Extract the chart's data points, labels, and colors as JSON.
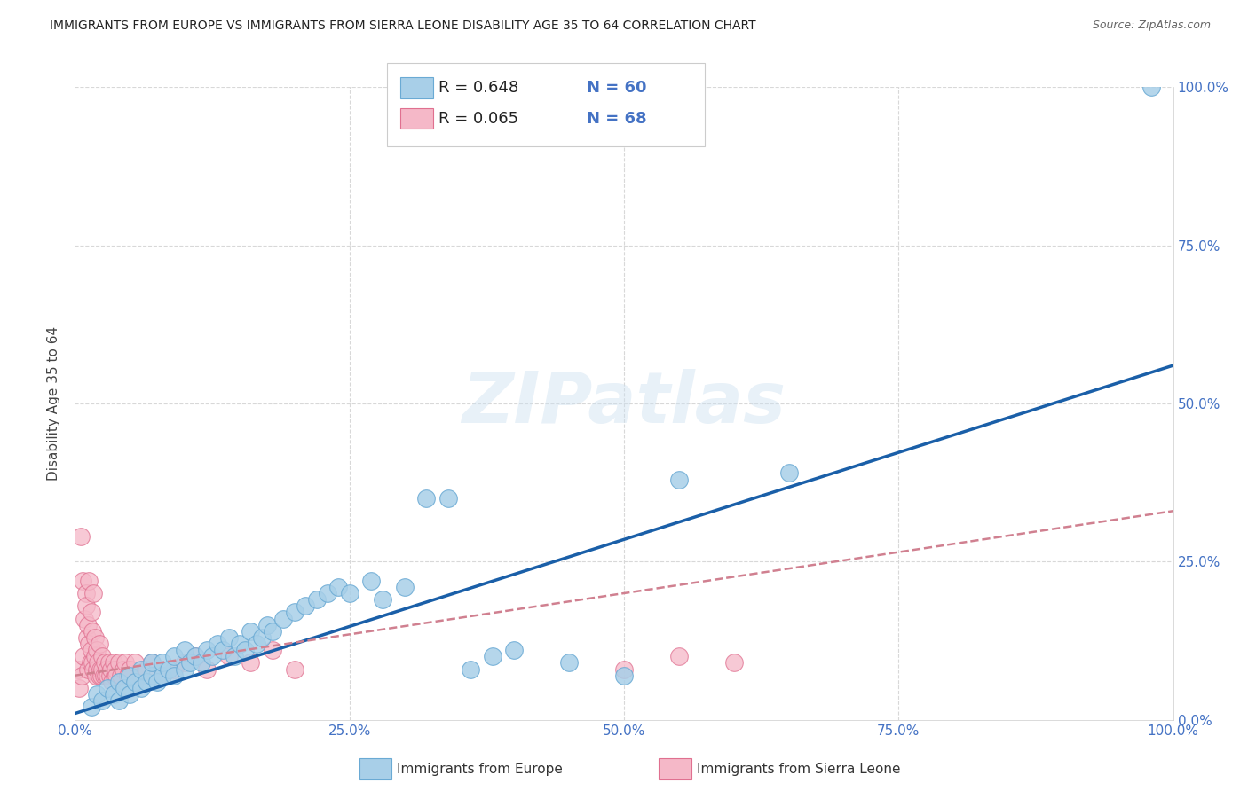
{
  "title": "IMMIGRANTS FROM EUROPE VS IMMIGRANTS FROM SIERRA LEONE DISABILITY AGE 35 TO 64 CORRELATION CHART",
  "source": "Source: ZipAtlas.com",
  "ylabel": "Disability Age 35 to 64",
  "xlim": [
    0,
    1.0
  ],
  "ylim": [
    0,
    1.0
  ],
  "xticks": [
    0.0,
    0.25,
    0.5,
    0.75,
    1.0
  ],
  "yticks": [
    0.0,
    0.25,
    0.5,
    0.75,
    1.0
  ],
  "xticklabels": [
    "0.0%",
    "25.0%",
    "50.0%",
    "75.0%",
    "100.0%"
  ],
  "yticklabels": [
    "0.0%",
    "25.0%",
    "50.0%",
    "75.0%",
    "100.0%"
  ],
  "europe_color": "#a8cfe8",
  "europe_edge_color": "#6aaad4",
  "sl_color": "#f5b8c8",
  "sl_edge_color": "#e07090",
  "europe_R": 0.648,
  "europe_N": 60,
  "sl_R": 0.065,
  "sl_N": 68,
  "tick_color": "#4472c4",
  "watermark_text": "ZIPatlas",
  "europe_line_color": "#1a5fa8",
  "sl_line_color": "#d08090",
  "grid_color": "#d8d8d8",
  "europe_line_x0": 0.0,
  "europe_line_y0": 0.01,
  "europe_line_x1": 1.0,
  "europe_line_y1": 0.56,
  "sl_line_x0": 0.0,
  "sl_line_y0": 0.07,
  "sl_line_x1": 1.0,
  "sl_line_y1": 0.33,
  "europe_scatter_x": [
    0.015,
    0.02,
    0.025,
    0.03,
    0.035,
    0.04,
    0.04,
    0.045,
    0.05,
    0.05,
    0.055,
    0.06,
    0.06,
    0.065,
    0.07,
    0.07,
    0.075,
    0.08,
    0.08,
    0.085,
    0.09,
    0.09,
    0.1,
    0.1,
    0.105,
    0.11,
    0.115,
    0.12,
    0.125,
    0.13,
    0.135,
    0.14,
    0.145,
    0.15,
    0.155,
    0.16,
    0.165,
    0.17,
    0.175,
    0.18,
    0.19,
    0.2,
    0.21,
    0.22,
    0.23,
    0.24,
    0.25,
    0.27,
    0.28,
    0.3,
    0.32,
    0.34,
    0.36,
    0.38,
    0.4,
    0.45,
    0.5,
    0.55,
    0.65,
    0.98
  ],
  "europe_scatter_y": [
    0.02,
    0.04,
    0.03,
    0.05,
    0.04,
    0.03,
    0.06,
    0.05,
    0.04,
    0.07,
    0.06,
    0.05,
    0.08,
    0.06,
    0.07,
    0.09,
    0.06,
    0.07,
    0.09,
    0.08,
    0.07,
    0.1,
    0.08,
    0.11,
    0.09,
    0.1,
    0.09,
    0.11,
    0.1,
    0.12,
    0.11,
    0.13,
    0.1,
    0.12,
    0.11,
    0.14,
    0.12,
    0.13,
    0.15,
    0.14,
    0.16,
    0.17,
    0.18,
    0.19,
    0.2,
    0.21,
    0.2,
    0.22,
    0.19,
    0.21,
    0.35,
    0.35,
    0.08,
    0.1,
    0.11,
    0.09,
    0.07,
    0.38,
    0.39,
    1.0
  ],
  "sl_scatter_x": [
    0.003,
    0.004,
    0.005,
    0.006,
    0.007,
    0.008,
    0.009,
    0.01,
    0.01,
    0.011,
    0.012,
    0.012,
    0.013,
    0.013,
    0.014,
    0.015,
    0.015,
    0.016,
    0.016,
    0.017,
    0.017,
    0.018,
    0.018,
    0.019,
    0.02,
    0.02,
    0.021,
    0.022,
    0.022,
    0.023,
    0.024,
    0.025,
    0.025,
    0.026,
    0.027,
    0.028,
    0.029,
    0.03,
    0.031,
    0.032,
    0.033,
    0.034,
    0.035,
    0.036,
    0.037,
    0.038,
    0.04,
    0.042,
    0.044,
    0.046,
    0.048,
    0.05,
    0.055,
    0.06,
    0.065,
    0.07,
    0.08,
    0.09,
    0.1,
    0.11,
    0.12,
    0.14,
    0.16,
    0.18,
    0.2,
    0.5,
    0.55,
    0.6
  ],
  "sl_scatter_y": [
    0.08,
    0.05,
    0.29,
    0.07,
    0.22,
    0.1,
    0.16,
    0.2,
    0.18,
    0.13,
    0.15,
    0.08,
    0.22,
    0.12,
    0.09,
    0.17,
    0.11,
    0.09,
    0.14,
    0.08,
    0.2,
    0.1,
    0.13,
    0.07,
    0.11,
    0.08,
    0.09,
    0.07,
    0.12,
    0.08,
    0.07,
    0.1,
    0.08,
    0.07,
    0.09,
    0.07,
    0.08,
    0.07,
    0.09,
    0.07,
    0.08,
    0.06,
    0.09,
    0.07,
    0.08,
    0.07,
    0.09,
    0.07,
    0.08,
    0.09,
    0.07,
    0.08,
    0.09,
    0.07,
    0.08,
    0.09,
    0.07,
    0.08,
    0.09,
    0.1,
    0.08,
    0.1,
    0.09,
    0.11,
    0.08,
    0.08,
    0.1,
    0.09
  ]
}
